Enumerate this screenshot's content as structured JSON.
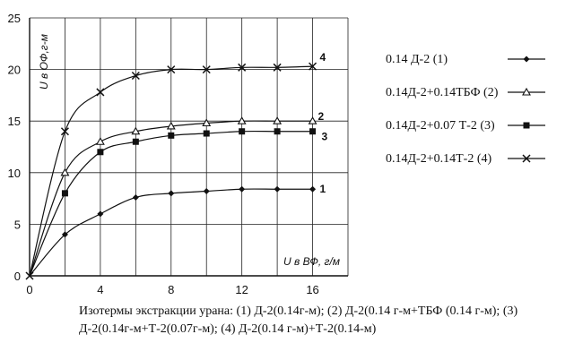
{
  "chart_data": {
    "type": "line",
    "title": "",
    "xlabel": "U в ВФ, г/м",
    "ylabel": "U в ОФ,г-м",
    "xlim": [
      0,
      18
    ],
    "ylim": [
      0,
      25
    ],
    "x_ticks": [
      "0",
      "4",
      "8",
      "12",
      "16"
    ],
    "y_ticks": [
      "0",
      "5",
      "10",
      "15",
      "20",
      "25"
    ],
    "grid": true,
    "legend_position": "right",
    "series": [
      {
        "name": "0.14 Д-2 (1)",
        "marker": "diamond",
        "curve_label": "1",
        "x": [
          0,
          2,
          4,
          6,
          8,
          10,
          12,
          14,
          16
        ],
        "y": [
          0,
          4,
          6,
          7.6,
          8,
          8.2,
          8.4,
          8.4,
          8.4
        ]
      },
      {
        "name": "0.14Д-2+0.14ТБФ (2)",
        "marker": "triangle",
        "curve_label": "2",
        "x": [
          0,
          2,
          4,
          6,
          8,
          10,
          12,
          14,
          16
        ],
        "y": [
          0,
          10,
          13,
          14,
          14.5,
          14.8,
          15,
          15,
          15
        ]
      },
      {
        "name": "0.14Д-2+0.07 Т-2 (3)",
        "marker": "square",
        "curve_label": "3",
        "x": [
          0,
          2,
          4,
          6,
          8,
          10,
          12,
          14,
          16
        ],
        "y": [
          0,
          8,
          12,
          13,
          13.6,
          13.8,
          14,
          14,
          14
        ]
      },
      {
        "name": "0.14Д-2+0.14Т-2 (4)",
        "marker": "x",
        "curve_label": "4",
        "x": [
          0,
          2,
          4,
          6,
          8,
          10,
          12,
          14,
          16
        ],
        "y": [
          0,
          14,
          17.8,
          19.4,
          20,
          20,
          20.2,
          20.2,
          20.3
        ]
      }
    ]
  },
  "caption": "Изотермы экстракции урана: (1) Д-2(0.14г-м); (2) Д-2(0.14 г-м+ТБФ (0.14 г-м); (3) Д-2(0.14г-м+Т-2(0.07г-м); (4) Д-2(0.14 г-м)+Т-2(0.14-м)"
}
